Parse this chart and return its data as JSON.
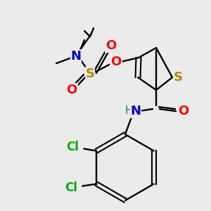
{
  "background_color": "#ebebeb",
  "figsize": [
    3.0,
    3.0
  ],
  "dpi": 100,
  "colors": {
    "bond": "#000000",
    "N": "#0000cc",
    "S": "#b8860b",
    "O": "#ff0000",
    "Cl": "#00aa00",
    "H": "#008080",
    "C": "#000000"
  }
}
